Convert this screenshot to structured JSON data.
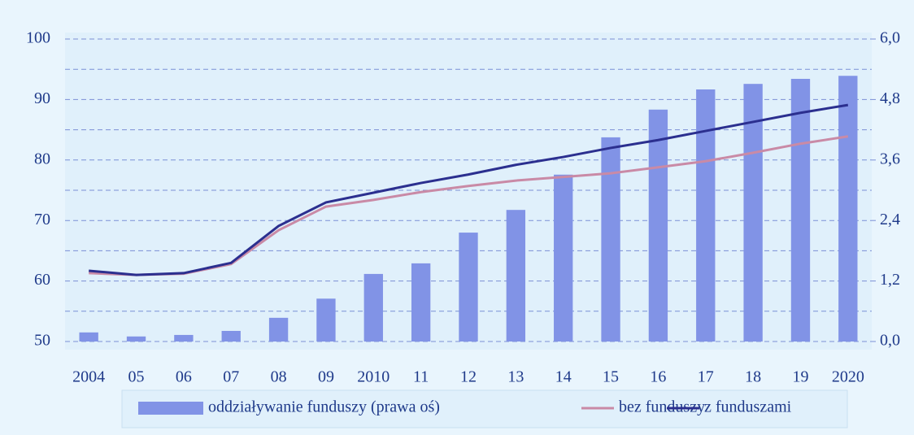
{
  "chart_data": {
    "type": "bar",
    "categories": [
      "2004",
      "05",
      "06",
      "07",
      "08",
      "09",
      "2010",
      "11",
      "12",
      "13",
      "14",
      "15",
      "16",
      "17",
      "18",
      "19",
      "2020"
    ],
    "series": [
      {
        "name": "oddziaływanie funduszy (prawa oś)",
        "type": "bar",
        "axis": "y2",
        "color": "#8193e6",
        "values": [
          0.18,
          0.1,
          0.13,
          0.21,
          0.47,
          0.85,
          1.34,
          1.55,
          2.16,
          2.61,
          3.31,
          4.05,
          4.6,
          5.0,
          5.11,
          5.21,
          5.27
        ]
      },
      {
        "name": "bez funduszy",
        "type": "line",
        "color": "#c98aa6",
        "values": [
          61.3,
          61.0,
          61.2,
          62.8,
          68.4,
          72.3,
          73.4,
          74.7,
          75.7,
          76.6,
          77.2,
          77.8,
          78.8,
          79.8,
          81.2,
          82.7,
          83.9
        ]
      },
      {
        "name": "z funduszami",
        "type": "line",
        "color": "#2b2f8f",
        "values": [
          61.7,
          61.0,
          61.3,
          63.0,
          69.1,
          73.0,
          74.6,
          76.2,
          77.6,
          79.2,
          80.5,
          82.0,
          83.3,
          84.8,
          86.3,
          87.8,
          89.1
        ]
      }
    ],
    "ylim": [
      50,
      100
    ],
    "yticks": [
      50,
      60,
      70,
      80,
      90,
      100
    ],
    "y2lim": [
      0,
      6
    ],
    "y2ticks": [
      {
        "value": 0,
        "label": "0,0"
      },
      {
        "value": 1.2,
        "label": "1,2"
      },
      {
        "value": 2.4,
        "label": "2,4"
      },
      {
        "value": 3.6,
        "label": "3,6"
      },
      {
        "value": 4.8,
        "label": "4,8"
      },
      {
        "value": 6,
        "label": "6,0"
      }
    ],
    "grid": true,
    "legend": "bottom"
  }
}
